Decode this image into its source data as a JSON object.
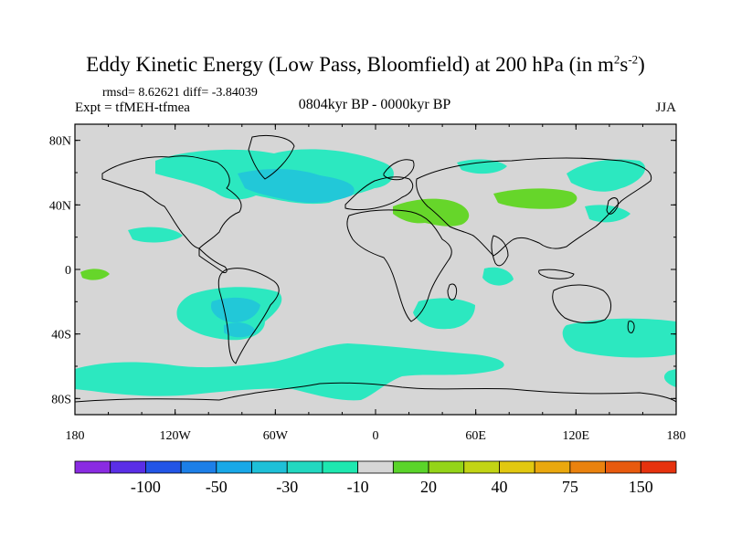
{
  "title": {
    "text": "Eddy Kinetic Energy (Low Pass, Bloomfield) at 200 hPa (in m",
    "sup1": "2",
    "mid": "s",
    "sup2": "-2",
    "end": ")"
  },
  "stats": "rmsd= 8.62621 diff= -3.84039",
  "experiment": "Expt = tfMEH-tfmea",
  "period": "0804kyr BP - 0000kyr BP",
  "season": "JJA",
  "axes": {
    "lat_labels": [
      "80N",
      "40N",
      "0",
      "40S",
      "80S"
    ],
    "lon_labels": [
      "180",
      "120W",
      "60W",
      "0",
      "60E",
      "120E",
      "180"
    ]
  },
  "colorbar": {
    "labels": [
      "-100",
      "-50",
      "-30",
      "-10",
      "20",
      "40",
      "75",
      "150"
    ],
    "colors": [
      "#8a2be2",
      "#5a2ee6",
      "#2255e6",
      "#1c7fe8",
      "#18a8e8",
      "#1ec0d8",
      "#22d8c0",
      "#1ee8b0",
      "#d6d6d6",
      "#5ad42a",
      "#94d418",
      "#c2d414",
      "#e2c810",
      "#eaa80e",
      "#ea820e",
      "#e85a0e",
      "#e6320e"
    ]
  },
  "map_colors": {
    "background": "#d6d6d6",
    "neg_light": "#2ce8c0",
    "neg_mid": "#22c8d8",
    "pos_light": "#66d62a"
  }
}
